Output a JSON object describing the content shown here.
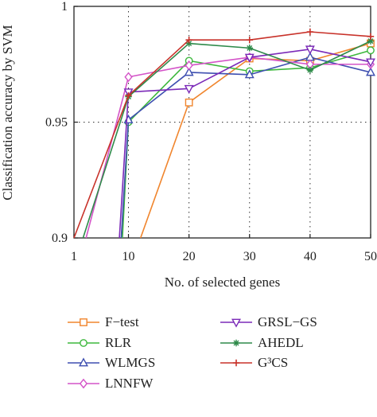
{
  "chart_data": {
    "type": "line",
    "title": "",
    "xlabel": "No. of selected genes",
    "ylabel": "Classification accuracy by SVM",
    "x": [
      1,
      10,
      20,
      30,
      40,
      50
    ],
    "xticks": [
      "1",
      "10",
      "20",
      "30",
      "40",
      "50"
    ],
    "yticks": [
      "0.9",
      "0.95",
      "1"
    ],
    "xlim": [
      1,
      50
    ],
    "ylim": [
      0.9,
      1.0
    ],
    "grid": "dotted at x=10,20,30,40 and y=0.95",
    "legend_placement": "bottom",
    "series": [
      {
        "name": "F−test",
        "color": "#f0852d",
        "marker": "square",
        "points": [
          [
            12,
            0.9
          ],
          [
            20,
            0.9585
          ],
          [
            30,
            0.9775
          ],
          [
            40,
            0.9765
          ],
          [
            50,
            0.984
          ]
        ]
      },
      {
        "name": "RLR",
        "color": "#3db83d",
        "marker": "circle",
        "points": [
          [
            9,
            0.9
          ],
          [
            10,
            0.95
          ],
          [
            20,
            0.9765
          ],
          [
            30,
            0.972
          ],
          [
            40,
            0.9735
          ],
          [
            50,
            0.981
          ]
        ]
      },
      {
        "name": "WLMGS",
        "color": "#3e4fb0",
        "marker": "triangle-up",
        "points": [
          [
            8.8,
            0.9
          ],
          [
            10,
            0.951
          ],
          [
            20,
            0.9715
          ],
          [
            30,
            0.9705
          ],
          [
            40,
            0.978
          ],
          [
            50,
            0.9715
          ]
        ]
      },
      {
        "name": "LNNFW",
        "color": "#d454c8",
        "marker": "diamond",
        "points": [
          [
            3,
            0.9
          ],
          [
            10,
            0.9695
          ],
          [
            20,
            0.9745
          ],
          [
            30,
            0.978
          ],
          [
            40,
            0.975
          ],
          [
            50,
            0.975
          ]
        ]
      },
      {
        "name": "GRSL−GS",
        "color": "#7b2ab8",
        "marker": "triangle-down",
        "points": [
          [
            8.5,
            0.9
          ],
          [
            10,
            0.963
          ],
          [
            20,
            0.9645
          ],
          [
            30,
            0.978
          ],
          [
            40,
            0.9815
          ],
          [
            50,
            0.976
          ]
        ]
      },
      {
        "name": "AHEDL",
        "color": "#2e8a4a",
        "marker": "star",
        "points": [
          [
            2.5,
            0.9
          ],
          [
            10,
            0.961
          ],
          [
            20,
            0.984
          ],
          [
            30,
            0.982
          ],
          [
            40,
            0.9725
          ],
          [
            50,
            0.985
          ]
        ]
      },
      {
        "name": "G³CS",
        "color": "#c8322a",
        "marker": "plus",
        "points": [
          [
            1,
            0.9
          ],
          [
            10,
            0.9615
          ],
          [
            20,
            0.9855
          ],
          [
            30,
            0.9855
          ],
          [
            40,
            0.989
          ],
          [
            50,
            0.987
          ]
        ]
      }
    ]
  }
}
